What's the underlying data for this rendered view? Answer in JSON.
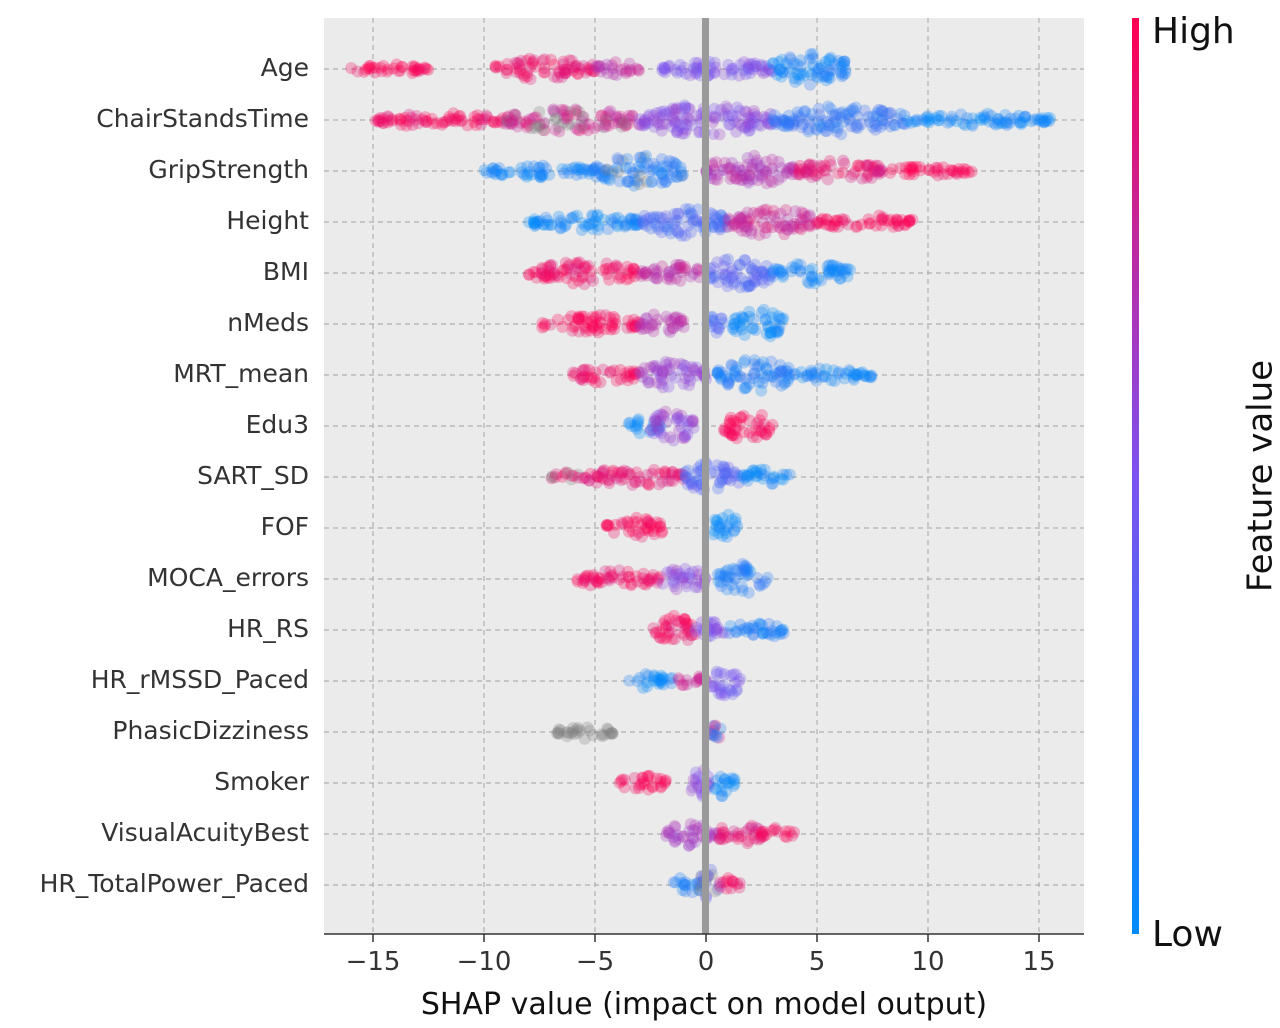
{
  "chart_data": {
    "type": "scatter",
    "subtype": "shap-beeswarm",
    "xlabel": "SHAP value (impact on model output)",
    "ylabel": "",
    "xlim": [
      -17.5,
      17
    ],
    "xticks": [
      -15,
      -10,
      -5,
      0,
      5,
      10,
      15
    ],
    "xtick_labels": [
      "−15",
      "−10",
      "−5",
      "0",
      "5",
      "10",
      "15"
    ],
    "grid": true,
    "colorbar": {
      "label": "Feature value",
      "high_label": "High",
      "low_label": "Low",
      "high_color": "#ff0052",
      "low_color": "#008bfb",
      "missing_color": "#808080"
    },
    "features": [
      {
        "name": "Age",
        "clusters": [
          {
            "x": [
              -16,
              -12.5
            ],
            "v": 1.0,
            "w": 0.35
          },
          {
            "x": [
              -9.5,
              -5
            ],
            "v": 0.92,
            "w": 0.7
          },
          {
            "x": [
              -5,
              -3
            ],
            "v": 0.75,
            "w": 0.45
          },
          {
            "x": [
              -2,
              3
            ],
            "v": 0.5,
            "w": 0.55
          },
          {
            "x": [
              3,
              6.5
            ],
            "v": 0.08,
            "w": 1.0
          }
        ]
      },
      {
        "name": "ChairStandsTime",
        "clusters": [
          {
            "x": [
              -15,
              -9
            ],
            "v": 0.95,
            "w": 0.45
          },
          {
            "x": [
              -9,
              -3
            ],
            "v": 0.82,
            "w": 0.8,
            "missing": 0.25
          },
          {
            "x": [
              -3,
              3
            ],
            "v": 0.55,
            "w": 1.0
          },
          {
            "x": [
              3,
              9
            ],
            "v": 0.2,
            "w": 0.9
          },
          {
            "x": [
              9,
              15.5
            ],
            "v": 0.05,
            "w": 0.4
          }
        ]
      },
      {
        "name": "GripStrength",
        "clusters": [
          {
            "x": [
              -10,
              -5
            ],
            "v": 0.05,
            "w": 0.4
          },
          {
            "x": [
              -5,
              -1
            ],
            "v": 0.12,
            "w": 1.0,
            "missing": 0.15
          },
          {
            "x": [
              0,
              4
            ],
            "v": 0.7,
            "w": 1.0
          },
          {
            "x": [
              4,
              8
            ],
            "v": 0.9,
            "w": 0.7
          },
          {
            "x": [
              8,
              12
            ],
            "v": 1.0,
            "w": 0.3
          }
        ]
      },
      {
        "name": "Height",
        "clusters": [
          {
            "x": [
              -8,
              -3
            ],
            "v": 0.05,
            "w": 0.55
          },
          {
            "x": [
              -3,
              1
            ],
            "v": 0.3,
            "w": 0.9
          },
          {
            "x": [
              1,
              5
            ],
            "v": 0.8,
            "w": 0.9
          },
          {
            "x": [
              5,
              9.3
            ],
            "v": 1.0,
            "w": 0.45
          }
        ]
      },
      {
        "name": "BMI",
        "clusters": [
          {
            "x": [
              -8,
              -3
            ],
            "v": 0.95,
            "w": 0.7
          },
          {
            "x": [
              -3,
              0
            ],
            "v": 0.75,
            "w": 0.55
          },
          {
            "x": [
              0,
              3
            ],
            "v": 0.35,
            "w": 1.0
          },
          {
            "x": [
              3,
              6.5
            ],
            "v": 0.05,
            "w": 0.65
          }
        ]
      },
      {
        "name": "nMeds",
        "clusters": [
          {
            "x": [
              -7.5,
              -3
            ],
            "v": 1.0,
            "w": 0.6
          },
          {
            "x": [
              -3,
              -1
            ],
            "v": 0.72,
            "w": 0.7
          },
          {
            "x": [
              0,
              1
            ],
            "v": 0.3,
            "w": 0.55
          },
          {
            "x": [
              1.2,
              3.5
            ],
            "v": 0.02,
            "w": 1.0
          }
        ]
      },
      {
        "name": "MRT_mean",
        "clusters": [
          {
            "x": [
              -6,
              -3
            ],
            "v": 0.95,
            "w": 0.5
          },
          {
            "x": [
              -3,
              0
            ],
            "v": 0.6,
            "w": 0.85
          },
          {
            "x": [
              0.5,
              4
            ],
            "v": 0.12,
            "w": 1.0
          },
          {
            "x": [
              4,
              7.5
            ],
            "v": 0.05,
            "w": 0.45
          }
        ]
      },
      {
        "name": "Edu3",
        "clusters": [
          {
            "x": [
              -3.5,
              -2
            ],
            "v": 0.02,
            "w": 0.5
          },
          {
            "x": [
              -2.5,
              -0.5
            ],
            "v": 0.6,
            "w": 1.0
          },
          {
            "x": [
              0.8,
              3
            ],
            "v": 1.0,
            "w": 0.95
          }
        ]
      },
      {
        "name": "SART_SD",
        "clusters": [
          {
            "x": [
              -7,
              -5.5
            ],
            "v": 0.9,
            "w": 0.3,
            "missing": 0.5
          },
          {
            "x": [
              -5.5,
              -1
            ],
            "v": 0.9,
            "w": 0.6
          },
          {
            "x": [
              -1,
              1.5
            ],
            "v": 0.35,
            "w": 1.0
          },
          {
            "x": [
              1.5,
              3.8
            ],
            "v": 0.05,
            "w": 0.5
          }
        ]
      },
      {
        "name": "FOF",
        "clusters": [
          {
            "x": [
              -4.5,
              -1.8
            ],
            "v": 1.0,
            "w": 0.65
          },
          {
            "x": [
              0.3,
              1.5
            ],
            "v": 0.02,
            "w": 1.0
          }
        ]
      },
      {
        "name": "MOCA_errors",
        "clusters": [
          {
            "x": [
              -6,
              -2
            ],
            "v": 0.95,
            "w": 0.55
          },
          {
            "x": [
              -2,
              0
            ],
            "v": 0.55,
            "w": 0.75
          },
          {
            "x": [
              0.5,
              2.8
            ],
            "v": 0.12,
            "w": 0.95
          }
        ]
      },
      {
        "name": "HR_RS",
        "clusters": [
          {
            "x": [
              -2.5,
              -0.5
            ],
            "v": 0.95,
            "w": 1.0
          },
          {
            "x": [
              -0.5,
              1
            ],
            "v": 0.5,
            "w": 0.7
          },
          {
            "x": [
              1,
              3.5
            ],
            "v": 0.1,
            "w": 0.6
          }
        ]
      },
      {
        "name": "HR_rMSSD_Paced",
        "clusters": [
          {
            "x": [
              -3.5,
              -1.5
            ],
            "v": 0.02,
            "w": 0.5
          },
          {
            "x": [
              -1.3,
              0
            ],
            "v": 0.8,
            "w": 0.45
          },
          {
            "x": [
              0.2,
              1.6
            ],
            "v": 0.45,
            "w": 1.0
          }
        ]
      },
      {
        "name": "PhasicDizziness",
        "clusters": [
          {
            "x": [
              -6.8,
              -4.2
            ],
            "v": 0.5,
            "w": 0.45,
            "missing": 1.0
          },
          {
            "x": [
              0.2,
              0.7
            ],
            "v": 0.9,
            "w": 0.5
          },
          {
            "x": [
              0.2,
              0.7
            ],
            "v": 0.15,
            "w": 0.45
          }
        ]
      },
      {
        "name": "Smoker",
        "clusters": [
          {
            "x": [
              -4,
              -1.8
            ],
            "v": 1.0,
            "w": 0.5
          },
          {
            "x": [
              -0.8,
              0.2
            ],
            "v": 0.55,
            "w": 1.0
          },
          {
            "x": [
              0.4,
              1.3
            ],
            "v": 0.02,
            "w": 1.0
          }
        ]
      },
      {
        "name": "VisualAcuityBest",
        "clusters": [
          {
            "x": [
              -1.8,
              0.5
            ],
            "v": 0.65,
            "w": 0.75
          },
          {
            "x": [
              0.5,
              2.5
            ],
            "v": 0.88,
            "w": 0.7
          },
          {
            "x": [
              2.5,
              4
            ],
            "v": 1.0,
            "w": 0.4
          }
        ]
      },
      {
        "name": "HR_TotalPower_Paced",
        "clusters": [
          {
            "x": [
              -1.5,
              -0.1
            ],
            "v": 0.1,
            "w": 0.55
          },
          {
            "x": [
              -0.3,
              0.6
            ],
            "v": 0.4,
            "w": 1.0,
            "missing": 0.3
          },
          {
            "x": [
              0.6,
              1.6
            ],
            "v": 0.95,
            "w": 0.5
          }
        ]
      }
    ]
  }
}
